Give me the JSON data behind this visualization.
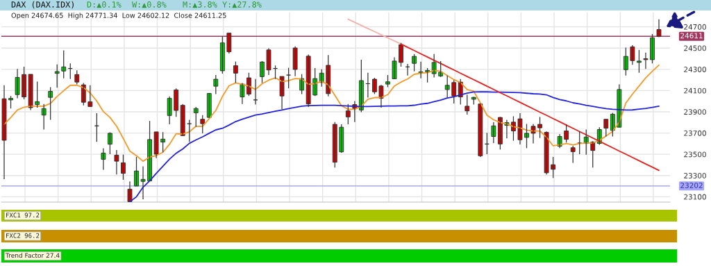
{
  "chart_data": [
    {
      "type": "candlestick",
      "title": "DAX (DAX.IDX)",
      "subtitle": "Open 24674.65  High 24771.34  Low 24602.12  Close 24611.25",
      "annotations": [
        "D:▲0.1%",
        "W:▲0.8%",
        "M:▲3.8%",
        "Y:▲27.8%"
      ],
      "categories": [
        null,
        null,
        null,
        null,
        null,
        null,
        null,
        null,
        null,
        null,
        null,
        null,
        null,
        null,
        null,
        null,
        null,
        null,
        null,
        null,
        null,
        null,
        null,
        null,
        null,
        null,
        null,
        null,
        null,
        null,
        null,
        null,
        null,
        null,
        null,
        null,
        null,
        null,
        null,
        null,
        null,
        null,
        null,
        null,
        null,
        null,
        null,
        null,
        null,
        null,
        null,
        null,
        null,
        null,
        null,
        null,
        null,
        null,
        null,
        null,
        null,
        null,
        null,
        null,
        null,
        null,
        null,
        null,
        null,
        null,
        null,
        null,
        null,
        null,
        null,
        null,
        null,
        null,
        null,
        null,
        null,
        null,
        null,
        null,
        null,
        null,
        null,
        null,
        null,
        null,
        null,
        null,
        null,
        null,
        null,
        null,
        null,
        null,
        null,
        null
      ],
      "ohlc": [
        [
          24023,
          24150,
          23266,
          23632
        ],
        [
          24012,
          24049,
          23931,
          24027
        ],
        [
          24062,
          24303,
          24027,
          24224
        ],
        [
          24251,
          24325,
          24018,
          24040
        ],
        [
          24253,
          24253,
          23917,
          23939
        ],
        [
          23968,
          24185,
          23939,
          23996
        ],
        [
          23869,
          23974,
          23733,
          23931
        ],
        [
          24036,
          24132,
          23825,
          24093
        ],
        [
          24262,
          24347,
          24128,
          24279
        ],
        [
          24284,
          24479,
          24216,
          24323
        ],
        [
          24308,
          24356,
          24209,
          24308
        ],
        [
          24251,
          24290,
          24159,
          24180
        ],
        [
          24154,
          24172,
          23961,
          23990
        ],
        [
          23994,
          24150,
          23946,
          23950
        ],
        [
          23768,
          23887,
          23617,
          23768
        ],
        [
          23453,
          23556,
          23354,
          23512
        ],
        [
          23595,
          23707,
          23501,
          23698
        ],
        [
          23492,
          23540,
          23310,
          23435
        ],
        [
          23420,
          23497,
          23260,
          23321
        ],
        [
          23172,
          23245,
          23054,
          23054
        ],
        [
          23201,
          23475,
          23201,
          23343
        ],
        [
          23245,
          23387,
          23076,
          23264
        ],
        [
          23249,
          23814,
          23249,
          23639
        ],
        [
          23711,
          23711,
          23464,
          23501
        ],
        [
          23615,
          23709,
          23519,
          23643
        ],
        [
          23865,
          24045,
          23782,
          24027
        ],
        [
          24106,
          24121,
          23852,
          23913
        ],
        [
          23961,
          23974,
          23672,
          23676
        ],
        [
          23788,
          23825,
          23617,
          23788
        ],
        [
          23891,
          23946,
          23760,
          23931
        ],
        [
          23830,
          23869,
          23698,
          23788
        ],
        [
          23847,
          24077,
          23843,
          24073
        ],
        [
          24141,
          24246,
          24067,
          24207
        ],
        [
          24286,
          24610,
          24259,
          24549
        ],
        [
          24641,
          24641,
          24450,
          24465
        ],
        [
          24334,
          24373,
          24172,
          24264
        ],
        [
          24040,
          24172,
          23974,
          24161
        ],
        [
          24220,
          24268,
          24049,
          24067
        ],
        [
          24012,
          24209,
          23968,
          24012
        ],
        [
          24231,
          24378,
          24172,
          24369
        ],
        [
          24483,
          24498,
          24246,
          24294
        ],
        [
          24308,
          24336,
          24209,
          24308
        ],
        [
          24233,
          24233,
          23924,
          24049
        ],
        [
          24246,
          24314,
          24121,
          24246
        ],
        [
          24501,
          24516,
          24235,
          24299
        ],
        [
          24104,
          24255,
          24067,
          24213
        ],
        [
          24424,
          24439,
          23946,
          23974
        ],
        [
          24058,
          24312,
          24049,
          24213
        ],
        [
          24176,
          24301,
          24137,
          24264
        ],
        [
          24338,
          24435,
          24045,
          24071
        ],
        [
          23782,
          23803,
          23376,
          23426
        ],
        [
          23523,
          23782,
          23514,
          23755
        ],
        [
          23909,
          23974,
          23782,
          23852
        ],
        [
          23968,
          24001,
          23803,
          23931
        ],
        [
          23917,
          24391,
          23896,
          24194
        ],
        [
          24165,
          24268,
          24034,
          24165
        ],
        [
          24207,
          24220,
          24067,
          24088
        ],
        [
          24143,
          24154,
          23939,
          24027
        ],
        [
          24161,
          24246,
          24132,
          24183
        ],
        [
          24211,
          24413,
          24211,
          24378
        ],
        [
          24531,
          24549,
          24325,
          24365
        ],
        [
          24323,
          24351,
          24242,
          24323
        ],
        [
          24356,
          24444,
          24281,
          24422
        ],
        [
          24264,
          24373,
          24216,
          24277
        ],
        [
          24277,
          24312,
          24176,
          24290
        ],
        [
          24259,
          24444,
          24224,
          24365
        ],
        [
          24237,
          24378,
          24229,
          24273
        ],
        [
          24110,
          24242,
          24034,
          24150
        ],
        [
          24176,
          24198,
          23979,
          24049
        ],
        [
          24180,
          24209,
          23968,
          24040
        ],
        [
          23953,
          24062,
          23874,
          23909
        ],
        [
          24018,
          24040,
          23968,
          24036
        ],
        [
          23974,
          23979,
          23475,
          23486
        ],
        [
          23597,
          23703,
          23501,
          23597
        ],
        [
          23668,
          23803,
          23606,
          23768
        ],
        [
          23847,
          23852,
          23545,
          23597
        ],
        [
          23773,
          23825,
          23650,
          23799
        ],
        [
          23803,
          23858,
          23628,
          23720
        ],
        [
          23834,
          23887,
          23593,
          23637
        ],
        [
          23659,
          23786,
          23558,
          23698
        ],
        [
          23764,
          23786,
          23602,
          23698
        ],
        [
          23782,
          23852,
          23654,
          23749
        ],
        [
          23707,
          23716,
          23310,
          23326
        ],
        [
          23402,
          23475,
          23277,
          23359
        ],
        [
          23576,
          23690,
          23558,
          23668
        ],
        [
          23720,
          23782,
          23611,
          23641
        ],
        [
          23562,
          23580,
          23420,
          23525
        ],
        [
          23606,
          23716,
          23501,
          23606
        ],
        [
          23602,
          23733,
          23497,
          23663
        ],
        [
          23615,
          23624,
          23376,
          23536
        ],
        [
          23602,
          23755,
          23589,
          23733
        ],
        [
          23830,
          23830,
          23668,
          23746
        ],
        [
          23725,
          23891,
          23668,
          23878
        ],
        [
          23755,
          24159,
          23755,
          24110
        ],
        [
          24297,
          24505,
          24242,
          24422
        ],
        [
          24511,
          24527,
          24343,
          24382
        ],
        [
          24365,
          24483,
          24268,
          24378
        ],
        [
          24400,
          24457,
          24303,
          24391
        ],
        [
          24391,
          24632,
          24356,
          24597
        ],
        [
          24674.65,
          24771.34,
          24602.12,
          24611.25
        ]
      ],
      "series": [
        {
          "type": "line",
          "color": "#f39a2b",
          "values": [
            23782,
            23847,
            23917,
            23944,
            23953,
            23953,
            23953,
            23979,
            24045,
            24099,
            24150,
            24150,
            24128,
            24078,
            24001,
            23902,
            23847,
            23764,
            23650,
            23530,
            23486,
            23435,
            23475,
            23488,
            23519,
            23595,
            23694,
            23690,
            23711,
            23764,
            23764,
            23836,
            23913,
            24045,
            24145,
            24172,
            24159,
            24143,
            24110,
            24165,
            24198,
            24220,
            24185,
            24194,
            24213,
            24209,
            24159,
            24165,
            24187,
            24154,
            24056,
            23957,
            23924,
            23924,
            23953,
            24018,
            24034,
            24034,
            24062,
            24143,
            24180,
            24209,
            24253,
            24264,
            24268,
            24290,
            24281,
            24242,
            24203,
            24176,
            24110,
            24093,
            23983,
            23869,
            23825,
            23799,
            23786,
            23760,
            23749,
            23727,
            23720,
            23720,
            23661,
            23580,
            23589,
            23602,
            23589,
            23602,
            23606,
            23606,
            23632,
            23672,
            23716,
            23803,
            23983,
            24067,
            24143,
            24220,
            24281,
            24340
          ]
        },
        {
          "type": "line",
          "color": "#2222dd",
          "values": [
            null,
            null,
            null,
            null,
            null,
            null,
            null,
            null,
            null,
            null,
            null,
            null,
            null,
            null,
            null,
            null,
            null,
            null,
            null,
            23054,
            23100,
            23190,
            23250,
            23320,
            23387,
            23455,
            23510,
            23550,
            23603,
            23635,
            23665,
            23698,
            23730,
            23745,
            23775,
            23808,
            23830,
            23850,
            23870,
            23880,
            23893,
            23905,
            23917,
            23930,
            23942,
            23953,
            23958,
            23960,
            23961,
            23961,
            23961,
            23958,
            23955,
            23952,
            23950,
            23950,
            23951,
            23953,
            23955,
            23955,
            23956,
            23957,
            23962,
            23973,
            23980,
            23995,
            24010,
            24030,
            24042,
            24060,
            24075,
            24087,
            24088,
            24088,
            24086,
            24085,
            24084,
            24082,
            24080,
            24075,
            24070,
            24067,
            24060,
            24035,
            24015,
            24003,
            23985,
            23975,
            23962,
            23952,
            23940,
            23930,
            23924,
            23920,
            23917,
            23918,
            23925,
            23932,
            23942,
            23953
          ]
        },
        {
          "type": "line",
          "color": "#e8201e",
          "values": [
            null,
            null,
            null,
            null,
            null,
            null,
            null,
            null,
            null,
            null,
            null,
            null,
            null,
            null,
            null,
            null,
            null,
            null,
            null,
            null,
            null,
            null,
            null,
            null,
            null,
            null,
            null,
            null,
            null,
            null,
            null,
            null,
            null,
            null,
            null,
            null,
            null,
            null,
            null,
            null,
            null,
            null,
            null,
            null,
            null,
            null,
            null,
            null,
            null,
            null,
            null,
            null,
            null,
            null,
            null,
            null,
            null,
            null,
            null,
            null,
            24538,
            24507,
            24477,
            24446,
            24416,
            24385,
            24355,
            24324,
            24294,
            24263,
            24233,
            24202,
            24172,
            24141,
            24111,
            24080,
            24050,
            24019,
            23989,
            23958,
            23928,
            23897,
            23867,
            23836,
            23806,
            23775,
            23745,
            23714,
            23684,
            23653,
            23623,
            23592,
            23562,
            23531,
            23501,
            23470,
            23440,
            23409,
            23379,
            23348
          ]
        },
        {
          "type": "line",
          "color": "#f6b0a8",
          "values": [
            null,
            null,
            null,
            null,
            null,
            null,
            null,
            null,
            null,
            null,
            null,
            null,
            null,
            null,
            null,
            null,
            null,
            null,
            null,
            null,
            null,
            null,
            null,
            null,
            null,
            null,
            null,
            null,
            null,
            null,
            null,
            null,
            null,
            null,
            null,
            null,
            null,
            null,
            null,
            null,
            null,
            null,
            null,
            null,
            null,
            null,
            null,
            null,
            null,
            null,
            null,
            null,
            24772,
            24743,
            24713,
            24684,
            24655,
            24626,
            24596,
            24567,
            24538,
            null,
            null,
            null,
            null,
            null,
            null,
            null,
            null,
            null,
            null,
            null,
            null,
            null,
            null,
            null,
            null,
            null,
            null,
            null,
            null,
            null,
            null,
            null,
            null,
            null,
            null,
            null,
            null,
            null,
            null,
            null,
            null,
            null,
            null,
            null,
            null,
            null,
            null,
            null
          ]
        }
      ],
      "ylim": [
        23050,
        24835
      ],
      "yticks": [
        23100,
        23300,
        23500,
        23700,
        23900,
        24100,
        24300,
        24500,
        24700
      ],
      "ref_lines": [
        {
          "axis": "y",
          "value": 24611,
          "label": "24611",
          "color": "#a3375e"
        },
        {
          "axis": "y",
          "value": 23202,
          "label": "23202",
          "color": "#a8a8f8"
        }
      ],
      "grid": true,
      "tick_labels": "y"
    },
    {
      "type": "other",
      "annotations": [
        "FXC1 97.2",
        "FXC2 96.2",
        "Trend Factor 27.4"
      ]
    }
  ]
}
